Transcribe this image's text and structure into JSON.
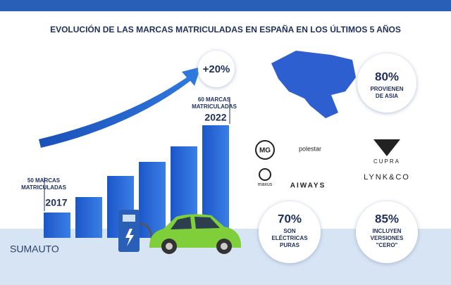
{
  "title": "EVOLUCIÓN DE LAS MARCAS MATRICULADAS EN ESPAÑA EN LOS ÚLTIMOS 5 AÑOS",
  "growth": "+20%",
  "start": {
    "lines": [
      "50 MARCAS",
      "MATRICULADAS"
    ],
    "year": "2017"
  },
  "end": {
    "lines": [
      "60 MARCAS",
      "MATRICULADAS"
    ],
    "year": "2022"
  },
  "stats": [
    {
      "value": "80%",
      "lines": [
        "PROVIENEN",
        "DE ASIA"
      ]
    },
    {
      "value": "70%",
      "lines": [
        "SON",
        "ELÉCTRICAS",
        "PURAS"
      ]
    },
    {
      "value": "85%",
      "lines": [
        "INCLUYEN",
        "VERSIONES",
        "\"CERO\""
      ]
    }
  ],
  "brands": [
    "MG",
    "polestar",
    "maxus",
    "AIWAYS",
    "CUPRA",
    "LYNK&CO"
  ],
  "logo": "SUMAUTO"
}
